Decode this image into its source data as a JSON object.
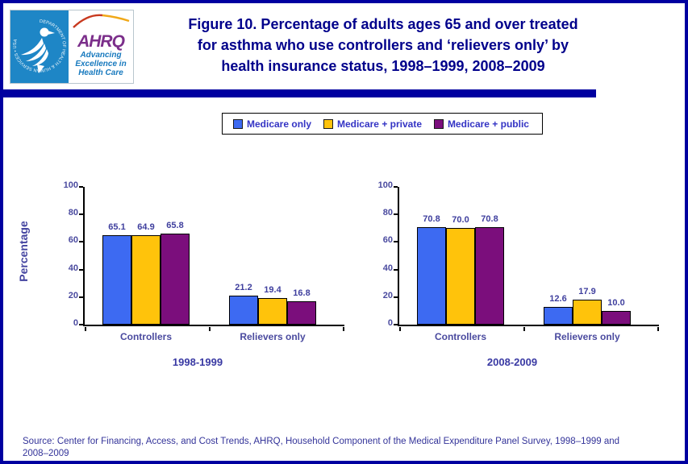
{
  "header": {
    "logo": {
      "seal_text": "DEPARTMENT OF HEALTH & HUMAN SERVICES • USA",
      "ahrq_acronym": "AHRQ",
      "tagline_lines": [
        "Advancing",
        "Excellence in",
        "Health Care"
      ]
    },
    "title_lines": [
      "Figure 10. Percentage of adults ages 65 and over treated",
      "for asthma who use controllers and ‘relievers only’ by",
      "health insurance status, 1998–1999, 2008–2009"
    ]
  },
  "legend": {
    "items": [
      {
        "label": "Medicare only",
        "color": "#3D6AF2"
      },
      {
        "label": "Medicare + private",
        "color": "#FFC30B"
      },
      {
        "label": "Medicare + public",
        "color": "#7B0E7C"
      }
    ]
  },
  "chart_data": [
    {
      "type": "bar",
      "title": "1998-1999",
      "categories": [
        "Controllers",
        "Relievers only"
      ],
      "series": [
        {
          "name": "Medicare only",
          "values": [
            65.1,
            21.2
          ]
        },
        {
          "name": "Medicare + private",
          "values": [
            64.9,
            19.4
          ]
        },
        {
          "name": "Medicare + public",
          "values": [
            65.8,
            16.8
          ]
        }
      ],
      "xlabel": "",
      "ylabel": "Percentage",
      "ylim": [
        0,
        100
      ],
      "yticks": [
        0,
        20,
        40,
        60,
        80,
        100
      ],
      "grid": false,
      "legend_position": "top",
      "data_labels": true
    },
    {
      "type": "bar",
      "title": "2008-2009",
      "categories": [
        "Controllers",
        "Relievers only"
      ],
      "series": [
        {
          "name": "Medicare only",
          "values": [
            70.8,
            12.6
          ]
        },
        {
          "name": "Medicare + private",
          "values": [
            70.0,
            17.9
          ]
        },
        {
          "name": "Medicare + public",
          "values": [
            70.8,
            10.0
          ]
        }
      ],
      "xlabel": "",
      "ylabel": "",
      "ylim": [
        0,
        100
      ],
      "yticks": [
        0,
        20,
        40,
        60,
        80,
        100
      ],
      "grid": false,
      "legend_position": "top",
      "data_labels": true
    }
  ],
  "source": {
    "lines": [
      "Source: Center for Financing, Access, and Cost Trends, AHRQ, Household Component of the Medical Expenditure Panel Survey,  1998–1999 and",
      "2008–2009"
    ]
  },
  "colors": {
    "page_border_navy": "#0000A0",
    "title_navy": "#00008B",
    "axis_text_blue": "#4A4A9F",
    "seal_blue": "#1E86C6",
    "ahrq_purple": "#7B2E8A",
    "tagline_blue": "#1779BE"
  }
}
